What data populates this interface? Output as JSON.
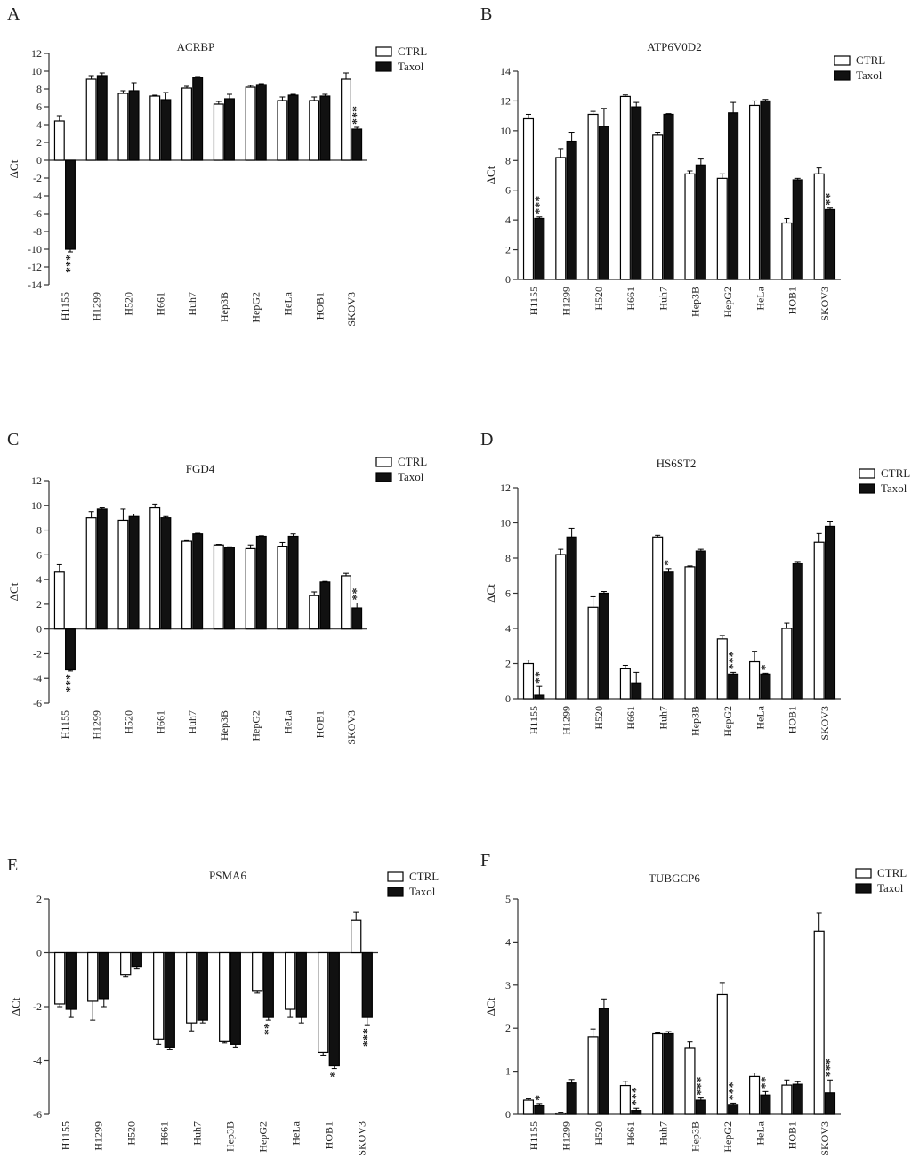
{
  "figure": {
    "domain": "multi-panel bar chart figure"
  },
  "series_names": [
    "CTRL",
    "Taxol"
  ],
  "colors": {
    "ctrl": "#ffffff",
    "taxol": "#111111",
    "axis": "#333333",
    "text": "#222222"
  },
  "chart_data": [
    {
      "panel": "A",
      "type": "bar",
      "title": "ACRBP",
      "ylabel": "ΔCt",
      "ylim": [
        -14,
        12
      ],
      "yticks": [
        12,
        10,
        8,
        6,
        4,
        2,
        0,
        -2,
        -4,
        -6,
        -8,
        -10,
        -12,
        -14
      ],
      "categories": [
        "H1155",
        "H1299",
        "H520",
        "H661",
        "Huh7",
        "Hep3B",
        "HepG2",
        "HeLa",
        "HOB1",
        "SKOV3"
      ],
      "series": [
        {
          "name": "CTRL",
          "values": [
            4.4,
            9.1,
            7.5,
            7.2,
            8.1,
            6.3,
            8.2,
            6.7,
            6.7,
            9.1
          ],
          "errors": [
            0.6,
            0.4,
            0.3,
            0.1,
            0.2,
            0.3,
            0.2,
            0.4,
            0.4,
            0.7
          ]
        },
        {
          "name": "Taxol",
          "values": [
            -10.0,
            9.5,
            7.8,
            6.8,
            9.3,
            6.9,
            8.5,
            7.3,
            7.2,
            3.5
          ],
          "errors": [
            0.3,
            0.3,
            0.9,
            0.8,
            0.1,
            0.5,
            0.1,
            0.1,
            0.2,
            0.2
          ]
        }
      ],
      "annotations": [
        "***",
        "",
        "",
        "",
        "",
        "",
        "",
        "",
        "",
        "***"
      ]
    },
    {
      "panel": "B",
      "type": "bar",
      "title": "ATP6V0D2",
      "ylabel": "ΔCt",
      "ylim": [
        0,
        14
      ],
      "yticks": [
        14,
        12,
        10,
        8,
        6,
        4,
        2,
        0
      ],
      "categories": [
        "H1155",
        "H1299",
        "H520",
        "H661",
        "Huh7",
        "Hep3B",
        "HepG2",
        "HeLa",
        "HOB1",
        "SKOV3"
      ],
      "series": [
        {
          "name": "CTRL",
          "values": [
            10.8,
            8.2,
            11.1,
            12.3,
            9.7,
            7.1,
            6.8,
            11.7,
            3.8,
            7.1
          ],
          "errors": [
            0.3,
            0.6,
            0.2,
            0.1,
            0.2,
            0.2,
            0.3,
            0.3,
            0.3,
            0.4
          ]
        },
        {
          "name": "Taxol",
          "values": [
            4.1,
            9.3,
            10.3,
            11.6,
            11.1,
            7.7,
            11.2,
            12.0,
            6.7,
            4.7
          ],
          "errors": [
            0.1,
            0.6,
            1.2,
            0.3,
            0.05,
            0.4,
            0.7,
            0.1,
            0.1,
            0.1
          ]
        }
      ],
      "annotations": [
        "***",
        "",
        "",
        "",
        "",
        "",
        "",
        "",
        "",
        "**"
      ]
    },
    {
      "panel": "C",
      "type": "bar",
      "title": "FGD4",
      "ylabel": "ΔCt",
      "ylim": [
        -6,
        12
      ],
      "yticks": [
        12,
        10,
        8,
        6,
        4,
        2,
        0,
        -2,
        -4,
        -6
      ],
      "categories": [
        "H1155",
        "H1299",
        "H520",
        "H661",
        "Huh7",
        "Hep3B",
        "HepG2",
        "HeLa",
        "HOB1",
        "SKOV3"
      ],
      "series": [
        {
          "name": "CTRL",
          "values": [
            4.6,
            9.0,
            8.8,
            9.8,
            7.1,
            6.8,
            6.5,
            6.7,
            2.7,
            4.3
          ],
          "errors": [
            0.6,
            0.5,
            0.9,
            0.3,
            0.05,
            0.05,
            0.3,
            0.3,
            0.3,
            0.2
          ]
        },
        {
          "name": "Taxol",
          "values": [
            -3.3,
            9.7,
            9.1,
            9.0,
            7.7,
            6.6,
            7.5,
            7.5,
            3.8,
            1.7
          ],
          "errors": [
            0.1,
            0.1,
            0.2,
            0.1,
            0.05,
            0.05,
            0.05,
            0.2,
            0.05,
            0.4
          ]
        }
      ],
      "annotations": [
        "***",
        "",
        "",
        "",
        "",
        "",
        "",
        "",
        "",
        "**"
      ]
    },
    {
      "panel": "D",
      "type": "bar",
      "title": "HS6ST2",
      "ylabel": "ΔCt",
      "ylim": [
        0,
        12
      ],
      "yticks": [
        12,
        10,
        8,
        6,
        4,
        2,
        0
      ],
      "categories": [
        "H1155",
        "H1299",
        "H520",
        "H661",
        "Huh7",
        "Hep3B",
        "HepG2",
        "HeLa",
        "HOB1",
        "SKOV3"
      ],
      "series": [
        {
          "name": "CTRL",
          "values": [
            2.0,
            8.2,
            5.2,
            1.7,
            9.2,
            7.5,
            3.4,
            2.1,
            4.0,
            8.9
          ],
          "errors": [
            0.2,
            0.3,
            0.6,
            0.2,
            0.1,
            0.05,
            0.2,
            0.6,
            0.3,
            0.5
          ]
        },
        {
          "name": "Taxol",
          "values": [
            0.2,
            9.2,
            6.0,
            0.9,
            7.2,
            8.4,
            1.4,
            1.4,
            7.7,
            9.8
          ],
          "errors": [
            0.5,
            0.5,
            0.1,
            0.6,
            0.2,
            0.1,
            0.1,
            0.05,
            0.1,
            0.3
          ]
        }
      ],
      "annotations": [
        "**",
        "",
        "",
        "",
        "*",
        "",
        "***",
        "*",
        "",
        ""
      ]
    },
    {
      "panel": "E",
      "type": "bar",
      "title": "PSMA6",
      "ylabel": "ΔCt",
      "ylim": [
        -6,
        2
      ],
      "yticks": [
        2,
        0,
        -2,
        -4,
        -6
      ],
      "categories": [
        "H1155",
        "H1299",
        "H520",
        "H661",
        "Huh7",
        "Hep3B",
        "HepG2",
        "HeLa",
        "HOB1",
        "SKOV3"
      ],
      "series": [
        {
          "name": "CTRL",
          "values": [
            -1.9,
            -1.8,
            -0.8,
            -3.2,
            -2.6,
            -3.3,
            -1.4,
            -2.1,
            -3.7,
            1.2
          ],
          "errors": [
            0.1,
            0.7,
            0.1,
            0.2,
            0.3,
            0.05,
            0.1,
            0.3,
            0.1,
            0.3
          ]
        },
        {
          "name": "Taxol",
          "values": [
            -2.1,
            -1.7,
            -0.5,
            -3.5,
            -2.5,
            -3.4,
            -2.4,
            -2.4,
            -4.2,
            -2.4
          ],
          "errors": [
            0.3,
            0.3,
            0.1,
            0.1,
            0.1,
            0.1,
            0.1,
            0.2,
            0.1,
            0.3
          ]
        }
      ],
      "annotations": [
        "",
        "",
        "",
        "",
        "",
        "",
        "**",
        "",
        "*",
        "***"
      ]
    },
    {
      "panel": "F",
      "type": "bar",
      "title": "TUBGCP6",
      "ylabel": "ΔCt",
      "ylim": [
        0,
        5
      ],
      "yticks": [
        5,
        4,
        3,
        2,
        1,
        0
      ],
      "categories": [
        "H1155",
        "H1299",
        "H520",
        "H661",
        "Huh7",
        "Hep3B",
        "HepG2",
        "HeLa",
        "HOB1",
        "SKOV3"
      ],
      "series": [
        {
          "name": "CTRL",
          "values": [
            0.33,
            0.03,
            1.8,
            0.67,
            1.87,
            1.55,
            2.78,
            0.88,
            0.68,
            4.25
          ],
          "errors": [
            0.03,
            0.02,
            0.18,
            0.1,
            0.02,
            0.13,
            0.28,
            0.08,
            0.12,
            0.42
          ]
        },
        {
          "name": "Taxol",
          "values": [
            0.2,
            0.73,
            2.45,
            0.09,
            1.87,
            0.33,
            0.23,
            0.45,
            0.7,
            0.5
          ],
          "errors": [
            0.05,
            0.08,
            0.23,
            0.05,
            0.05,
            0.05,
            0.03,
            0.08,
            0.06,
            0.3
          ]
        }
      ],
      "annotations": [
        "*",
        "",
        "",
        "***",
        "",
        "***",
        "***",
        "**",
        "",
        "***"
      ]
    }
  ]
}
